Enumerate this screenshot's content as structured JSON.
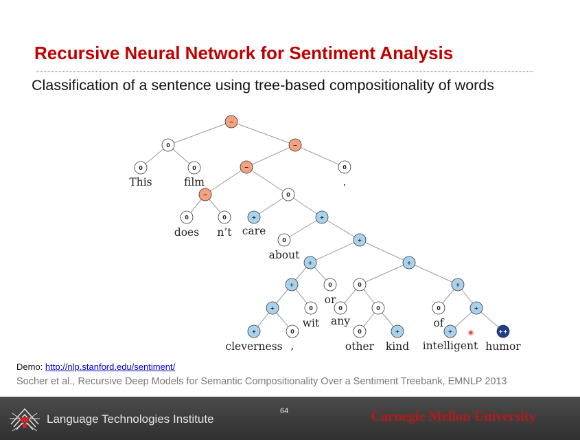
{
  "slide": {
    "title": "Recursive Neural Network for Sentiment Analysis",
    "subtitle": "Classification of a sentence using tree-based compositionality of words"
  },
  "tree": {
    "colors": {
      "negative": "#f4a17f",
      "neutral": "#ffffff",
      "positive": "#a9d3ec",
      "very_positive": "#1d3f8a"
    },
    "nodes": [
      {
        "id": "root",
        "label": "−",
        "sentiment": "negative"
      },
      {
        "id": "n_thisfilm",
        "label": "0",
        "sentiment": "neutral",
        "parent": "root"
      },
      {
        "id": "n_this",
        "label": "0",
        "sentiment": "neutral",
        "parent": "n_thisfilm",
        "word": "This"
      },
      {
        "id": "n_film",
        "label": "0",
        "sentiment": "neutral",
        "parent": "n_thisfilm",
        "word": "film"
      },
      {
        "id": "n_right",
        "label": "−",
        "sentiment": "negative",
        "parent": "root"
      },
      {
        "id": "n_vp",
        "label": "−",
        "sentiment": "negative",
        "parent": "n_right"
      },
      {
        "id": "n_period",
        "label": "0",
        "sentiment": "neutral",
        "parent": "n_right",
        "word": "."
      },
      {
        "id": "n_doesnt",
        "label": "−",
        "sentiment": "negative",
        "parent": "n_vp"
      },
      {
        "id": "n_does",
        "label": "0",
        "sentiment": "neutral",
        "parent": "n_doesnt",
        "word": "does"
      },
      {
        "id": "n_nt",
        "label": "0",
        "sentiment": "neutral",
        "parent": "n_doesnt",
        "word": "n’t"
      },
      {
        "id": "n_careabout",
        "label": "0",
        "sentiment": "neutral",
        "parent": "n_vp"
      },
      {
        "id": "n_care",
        "label": "+",
        "sentiment": "positive",
        "parent": "n_careabout",
        "word": "care"
      },
      {
        "id": "n_pp",
        "label": "+",
        "sentiment": "positive",
        "parent": "n_careabout"
      },
      {
        "id": "n_about",
        "label": "0",
        "sentiment": "neutral",
        "parent": "n_pp",
        "word": "about"
      },
      {
        "id": "n_np",
        "label": "+",
        "sentiment": "positive",
        "parent": "n_pp"
      },
      {
        "id": "n_left",
        "label": "+",
        "sentiment": "positive",
        "parent": "n_np"
      },
      {
        "id": "n_right2",
        "label": "+",
        "sentiment": "positive",
        "parent": "n_np"
      },
      {
        "id": "n_clevwit",
        "label": "+",
        "sentiment": "positive",
        "parent": "n_left"
      },
      {
        "id": "n_or",
        "label": "0",
        "sentiment": "neutral",
        "parent": "n_left",
        "word": "or"
      },
      {
        "id": "n_clevcomma",
        "label": "+",
        "sentiment": "positive",
        "parent": "n_clevwit"
      },
      {
        "id": "n_wit",
        "label": "0",
        "sentiment": "neutral",
        "parent": "n_clevwit",
        "word": "wit"
      },
      {
        "id": "n_cleverness",
        "label": "+",
        "sentiment": "positive",
        "parent": "n_clevcomma",
        "word": "cleverness"
      },
      {
        "id": "n_comma",
        "label": "0",
        "sentiment": "neutral",
        "parent": "n_clevcomma",
        "word": ","
      },
      {
        "id": "n_anykind",
        "label": "0",
        "sentiment": "neutral",
        "parent": "n_right2"
      },
      {
        "id": "n_ofhumor",
        "label": "+",
        "sentiment": "positive",
        "parent": "n_right2"
      },
      {
        "id": "n_any",
        "label": "0",
        "sentiment": "neutral",
        "parent": "n_anykind",
        "word": "any"
      },
      {
        "id": "n_otherkind",
        "label": "0",
        "sentiment": "neutral",
        "parent": "n_anykind"
      },
      {
        "id": "n_other",
        "label": "0",
        "sentiment": "neutral",
        "parent": "n_otherkind",
        "word": "other"
      },
      {
        "id": "n_kind",
        "label": "+",
        "sentiment": "positive",
        "parent": "n_otherkind",
        "word": "kind"
      },
      {
        "id": "n_of",
        "label": "0",
        "sentiment": "neutral",
        "parent": "n_ofhumor",
        "word": "of"
      },
      {
        "id": "n_inthumor",
        "label": "+",
        "sentiment": "positive",
        "parent": "n_ofhumor"
      },
      {
        "id": "n_intelligent",
        "label": "+",
        "sentiment": "positive",
        "parent": "n_inthumor",
        "word": "intelligent"
      },
      {
        "id": "n_humor",
        "label": "++",
        "sentiment": "very_positive",
        "parent": "n_inthumor",
        "word": "humor"
      }
    ]
  },
  "demo": {
    "prefix": "Demo: ",
    "link": "http://nlp.stanford.edu/sentiment/"
  },
  "citation": "Socher et al., Recursive Deep Models for Semantic Compositionality Over a Sentiment Treebank, EMNLP 2013",
  "footer": {
    "institute": "Language Technologies Institute",
    "page_number": "64",
    "university": "Carnegie Mellon University"
  }
}
